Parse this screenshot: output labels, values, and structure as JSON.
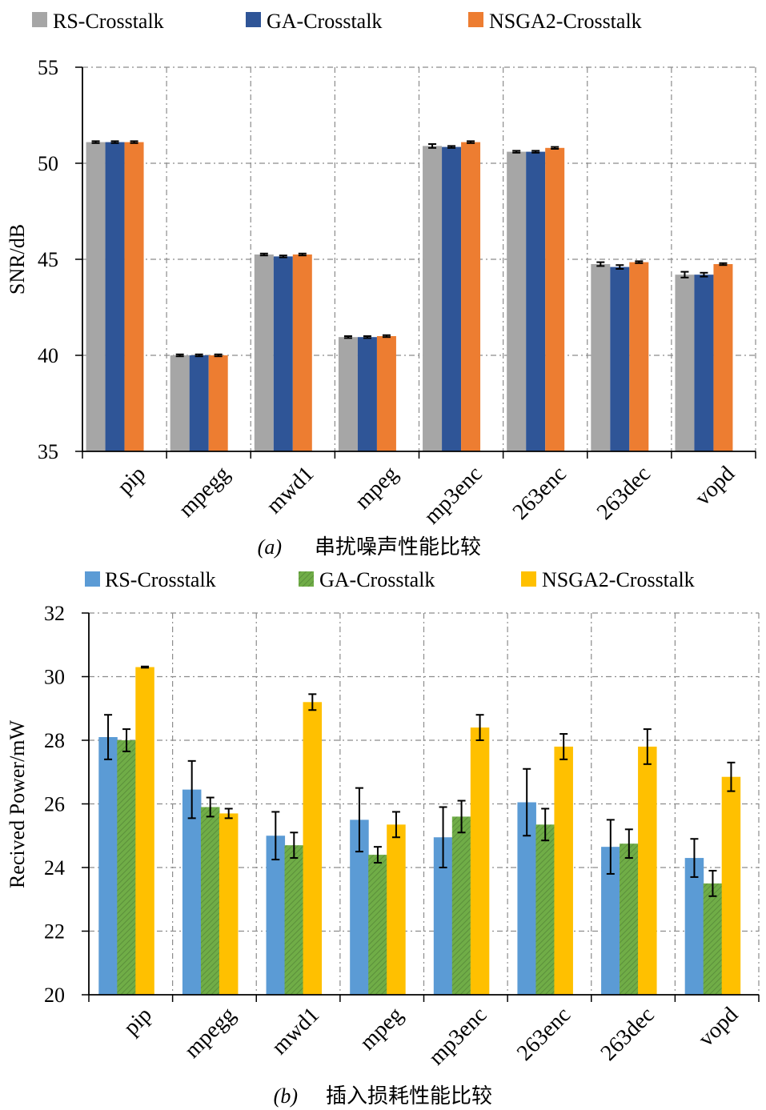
{
  "chart_data": [
    {
      "type": "bar",
      "categories": [
        "pip",
        "mpegg",
        "mwd1",
        "mpeg",
        "mp3enc",
        "263enc",
        "263dec",
        "vopd"
      ],
      "series": [
        {
          "name": "RS-Crosstalk",
          "color": "#a6a6a6",
          "values": [
            51.1,
            40.0,
            45.25,
            40.95,
            50.9,
            50.6,
            44.75,
            44.2
          ],
          "errors": [
            0.05,
            0.05,
            0.05,
            0.05,
            0.1,
            0.05,
            0.1,
            0.15
          ]
        },
        {
          "name": "GA-Crosstalk",
          "color": "#2f5597",
          "values": [
            51.1,
            40.0,
            45.15,
            40.95,
            50.85,
            50.6,
            44.6,
            44.2
          ],
          "errors": [
            0.05,
            0.05,
            0.05,
            0.05,
            0.05,
            0.05,
            0.1,
            0.1
          ]
        },
        {
          "name": "NSGA2-Crosstalk",
          "color": "#ed7d31",
          "values": [
            51.1,
            40.0,
            45.25,
            41.0,
            51.1,
            50.8,
            44.85,
            44.75
          ],
          "errors": [
            0.05,
            0.05,
            0.05,
            0.05,
            0.05,
            0.05,
            0.05,
            0.05
          ]
        }
      ],
      "ylabel": "SNR/dB",
      "ylim": [
        35,
        55
      ],
      "yticks": [
        "35",
        "40",
        "45",
        "50",
        "55"
      ],
      "grid": "dash-dot",
      "legend": "top",
      "caption_label": "(a)",
      "caption_text": "串扰噪声性能比较"
    },
    {
      "type": "bar",
      "categories": [
        "pip",
        "mpegg",
        "mwd1",
        "mpeg",
        "mp3enc",
        "263enc",
        "263dec",
        "vopd"
      ],
      "series": [
        {
          "name": "RS-Crosstalk",
          "color": "#5b9bd5",
          "values": [
            28.1,
            26.45,
            25.0,
            25.5,
            24.95,
            26.05,
            24.65,
            24.3
          ],
          "errors": [
            0.7,
            0.9,
            0.75,
            1.0,
            0.95,
            1.05,
            0.85,
            0.6
          ]
        },
        {
          "name": "GA-Crosstalk",
          "color": "#70ad47",
          "values": [
            28.0,
            25.9,
            24.7,
            24.4,
            25.6,
            25.35,
            24.75,
            23.5
          ],
          "errors": [
            0.35,
            0.3,
            0.4,
            0.25,
            0.5,
            0.5,
            0.45,
            0.4
          ]
        },
        {
          "name": "NSGA2-Crosstalk",
          "color": "#ffc000",
          "values": [
            30.3,
            25.7,
            29.2,
            25.35,
            28.4,
            27.8,
            27.8,
            26.85
          ],
          "errors": [
            0.02,
            0.15,
            0.25,
            0.4,
            0.4,
            0.4,
            0.55,
            0.45
          ]
        }
      ],
      "ylabel": "Recived Power/mW",
      "ylim": [
        20,
        32
      ],
      "yticks": [
        "20",
        "22",
        "24",
        "26",
        "28",
        "30",
        "32"
      ],
      "grid": "dash-dot",
      "legend": "top",
      "caption_label": "(b)",
      "caption_text": "插入损耗性能比较"
    }
  ]
}
